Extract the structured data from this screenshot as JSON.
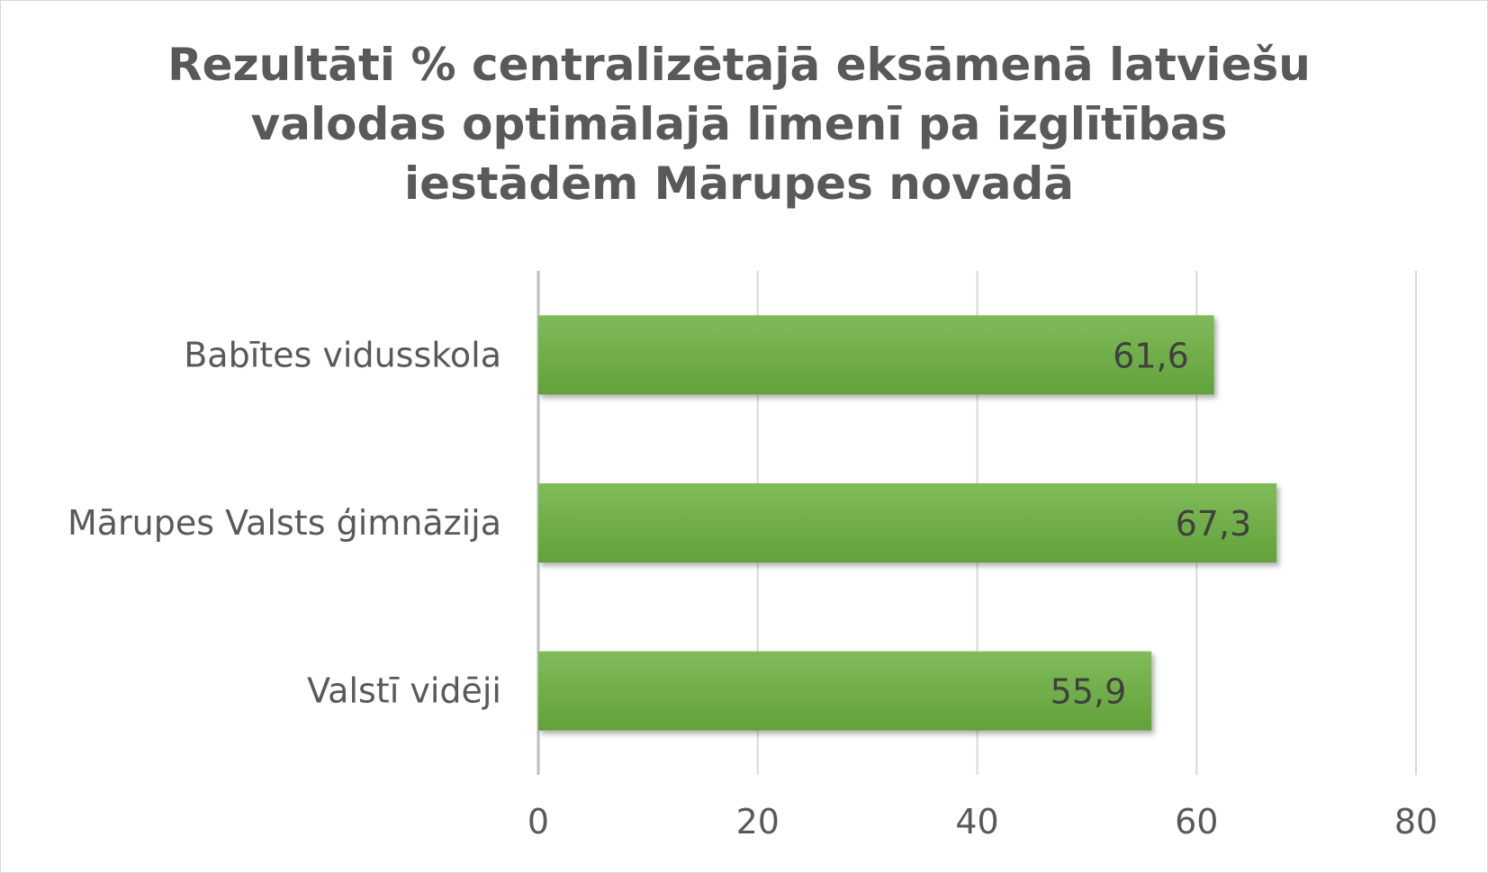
{
  "chart_data": {
    "type": "bar",
    "orientation": "horizontal",
    "title": "Rezultāti % centralizētajā eksāmenā latviešu valodas optimālajā līmenī pa izglītības iestādēm Mārupes novadā",
    "categories": [
      "Babītes vidusskola",
      "Mārupes Valsts ģimnāzija",
      "Valstī vidēji"
    ],
    "values": [
      61.6,
      67.3,
      55.9
    ],
    "data_labels": [
      "61,6",
      "67,3",
      "55,9"
    ],
    "x_ticks": [
      "0",
      "20",
      "40",
      "60",
      "80"
    ],
    "xlim": [
      0,
      80
    ],
    "xlabel": "",
    "ylabel": "",
    "grid": true,
    "legend": "none",
    "bar_color": "#70ad47",
    "bar_color_light": "#80bb5a",
    "bar_color_dark": "#62a23a"
  }
}
